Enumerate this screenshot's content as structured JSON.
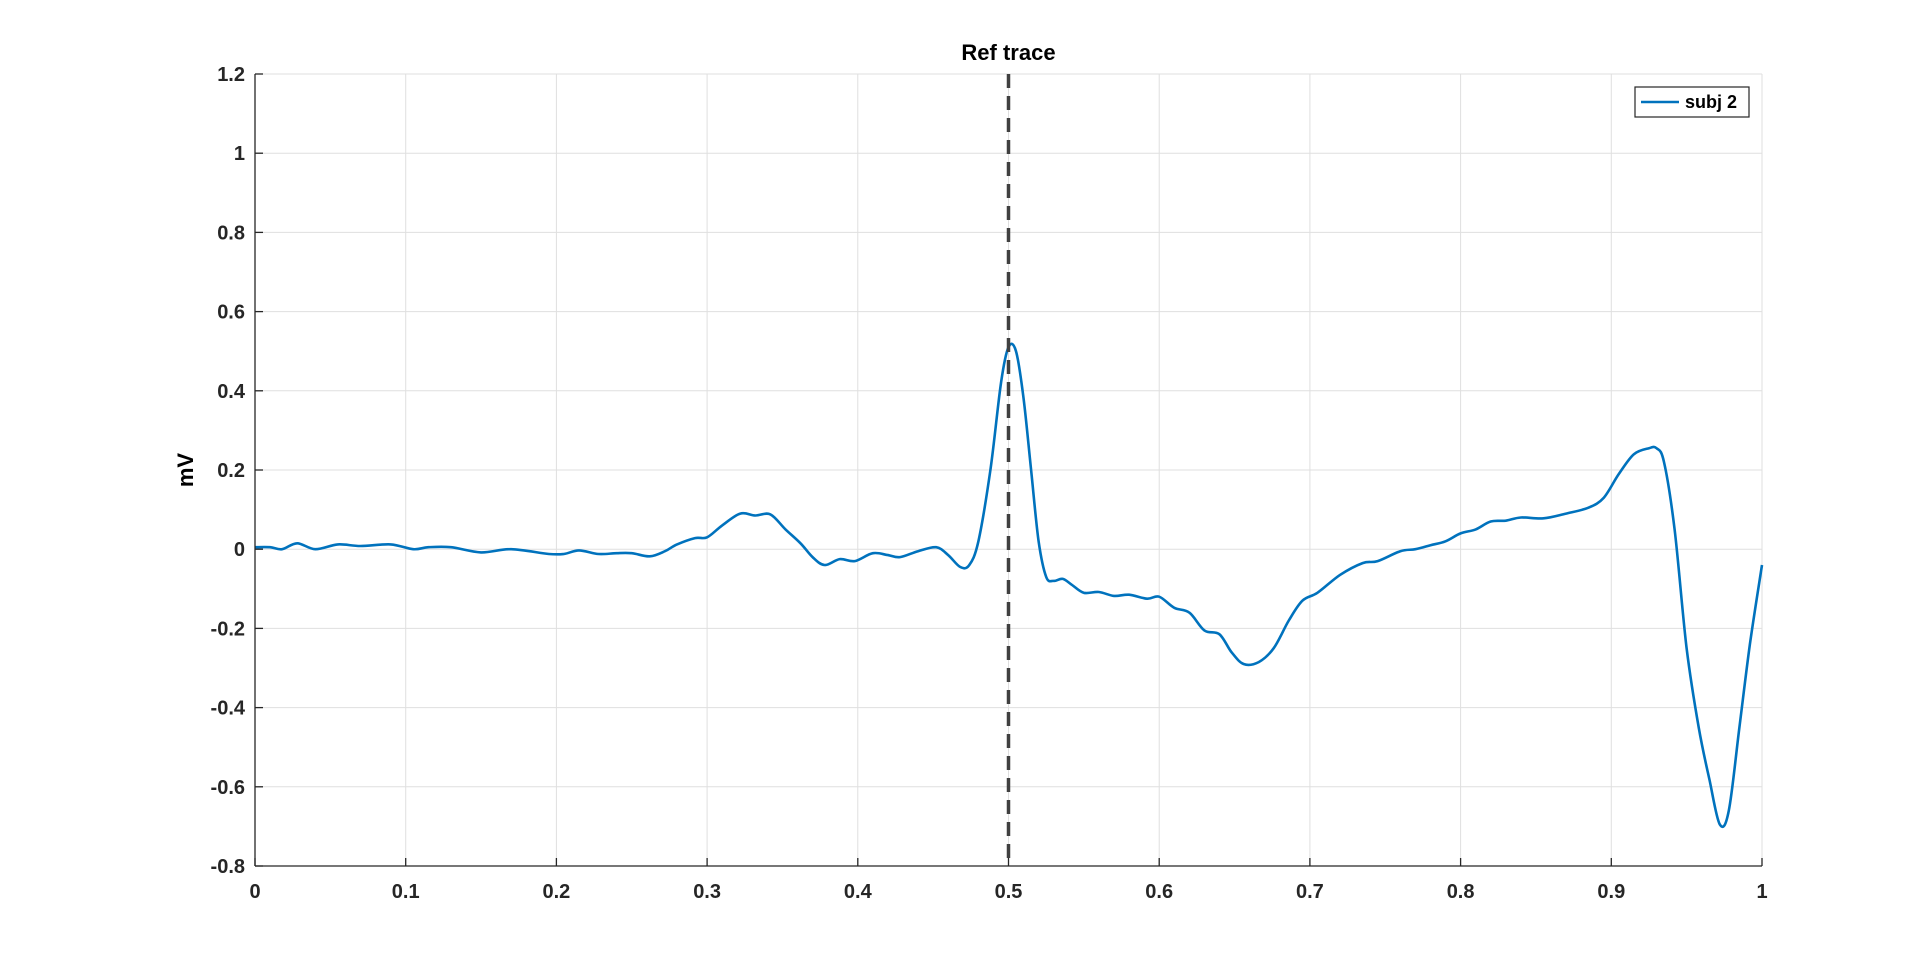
{
  "chart_data": {
    "type": "line",
    "title": "Ref trace",
    "xlabel": "",
    "ylabel": "mV",
    "xlim": [
      0,
      1
    ],
    "ylim": [
      -0.8,
      1.2
    ],
    "xticks": [
      0,
      0.1,
      0.2,
      0.3,
      0.4,
      0.5,
      0.6,
      0.7,
      0.8,
      0.9,
      1
    ],
    "xtick_labels": [
      "0",
      "0.1",
      "0.2",
      "0.3",
      "0.4",
      "0.5",
      "0.6",
      "0.7",
      "0.8",
      "0.9",
      "1"
    ],
    "yticks": [
      -0.8,
      -0.6,
      -0.4,
      -0.2,
      0,
      0.2,
      0.4,
      0.6,
      0.8,
      1,
      1.2
    ],
    "ytick_labels": [
      "-0.8",
      "-0.6",
      "-0.4",
      "-0.2",
      "0",
      "0.2",
      "0.4",
      "0.6",
      "0.8",
      "1",
      "1.2"
    ],
    "grid": true,
    "legend_position": "top-right",
    "reference_line": {
      "x": 0.5,
      "style": "dashed",
      "color": "#404040"
    },
    "series": [
      {
        "name": "subj 2",
        "color": "#0072BD",
        "points": [
          [
            0.0,
            0.005
          ],
          [
            0.01,
            0.005
          ],
          [
            0.018,
            0.0
          ],
          [
            0.028,
            0.015
          ],
          [
            0.04,
            0.0
          ],
          [
            0.055,
            0.012
          ],
          [
            0.07,
            0.008
          ],
          [
            0.09,
            0.012
          ],
          [
            0.105,
            0.0
          ],
          [
            0.115,
            0.005
          ],
          [
            0.13,
            0.005
          ],
          [
            0.15,
            -0.008
          ],
          [
            0.17,
            0.0
          ],
          [
            0.195,
            -0.012
          ],
          [
            0.205,
            -0.012
          ],
          [
            0.215,
            -0.003
          ],
          [
            0.228,
            -0.012
          ],
          [
            0.24,
            -0.01
          ],
          [
            0.25,
            -0.01
          ],
          [
            0.262,
            -0.018
          ],
          [
            0.272,
            -0.005
          ],
          [
            0.28,
            0.012
          ],
          [
            0.292,
            0.028
          ],
          [
            0.3,
            0.03
          ],
          [
            0.31,
            0.06
          ],
          [
            0.322,
            0.09
          ],
          [
            0.332,
            0.085
          ],
          [
            0.342,
            0.088
          ],
          [
            0.352,
            0.05
          ],
          [
            0.362,
            0.015
          ],
          [
            0.37,
            -0.02
          ],
          [
            0.378,
            -0.04
          ],
          [
            0.388,
            -0.025
          ],
          [
            0.398,
            -0.03
          ],
          [
            0.41,
            -0.01
          ],
          [
            0.42,
            -0.015
          ],
          [
            0.428,
            -0.02
          ],
          [
            0.44,
            -0.005
          ],
          [
            0.452,
            0.005
          ],
          [
            0.46,
            -0.015
          ],
          [
            0.468,
            -0.045
          ],
          [
            0.474,
            -0.04
          ],
          [
            0.48,
            0.02
          ],
          [
            0.488,
            0.2
          ],
          [
            0.495,
            0.42
          ],
          [
            0.5,
            0.51
          ],
          [
            0.505,
            0.5
          ],
          [
            0.51,
            0.38
          ],
          [
            0.515,
            0.2
          ],
          [
            0.52,
            0.02
          ],
          [
            0.525,
            -0.07
          ],
          [
            0.53,
            -0.08
          ],
          [
            0.536,
            -0.075
          ],
          [
            0.542,
            -0.09
          ],
          [
            0.55,
            -0.11
          ],
          [
            0.56,
            -0.108
          ],
          [
            0.57,
            -0.118
          ],
          [
            0.58,
            -0.115
          ],
          [
            0.592,
            -0.125
          ],
          [
            0.6,
            -0.12
          ],
          [
            0.61,
            -0.148
          ],
          [
            0.62,
            -0.16
          ],
          [
            0.63,
            -0.205
          ],
          [
            0.64,
            -0.215
          ],
          [
            0.648,
            -0.26
          ],
          [
            0.656,
            -0.29
          ],
          [
            0.666,
            -0.285
          ],
          [
            0.676,
            -0.25
          ],
          [
            0.686,
            -0.18
          ],
          [
            0.695,
            -0.13
          ],
          [
            0.705,
            -0.11
          ],
          [
            0.72,
            -0.065
          ],
          [
            0.735,
            -0.035
          ],
          [
            0.745,
            -0.03
          ],
          [
            0.76,
            -0.005
          ],
          [
            0.77,
            0.0
          ],
          [
            0.78,
            0.01
          ],
          [
            0.79,
            0.02
          ],
          [
            0.8,
            0.04
          ],
          [
            0.81,
            0.05
          ],
          [
            0.82,
            0.07
          ],
          [
            0.83,
            0.072
          ],
          [
            0.84,
            0.08
          ],
          [
            0.855,
            0.078
          ],
          [
            0.87,
            0.09
          ],
          [
            0.885,
            0.105
          ],
          [
            0.895,
            0.13
          ],
          [
            0.905,
            0.19
          ],
          [
            0.915,
            0.24
          ],
          [
            0.925,
            0.255
          ],
          [
            0.93,
            0.255
          ],
          [
            0.935,
            0.22
          ],
          [
            0.942,
            0.05
          ],
          [
            0.95,
            -0.25
          ],
          [
            0.958,
            -0.45
          ],
          [
            0.965,
            -0.58
          ],
          [
            0.972,
            -0.695
          ],
          [
            0.978,
            -0.66
          ],
          [
            0.985,
            -0.45
          ],
          [
            0.992,
            -0.24
          ],
          [
            1.0,
            -0.04
          ]
        ]
      }
    ]
  }
}
